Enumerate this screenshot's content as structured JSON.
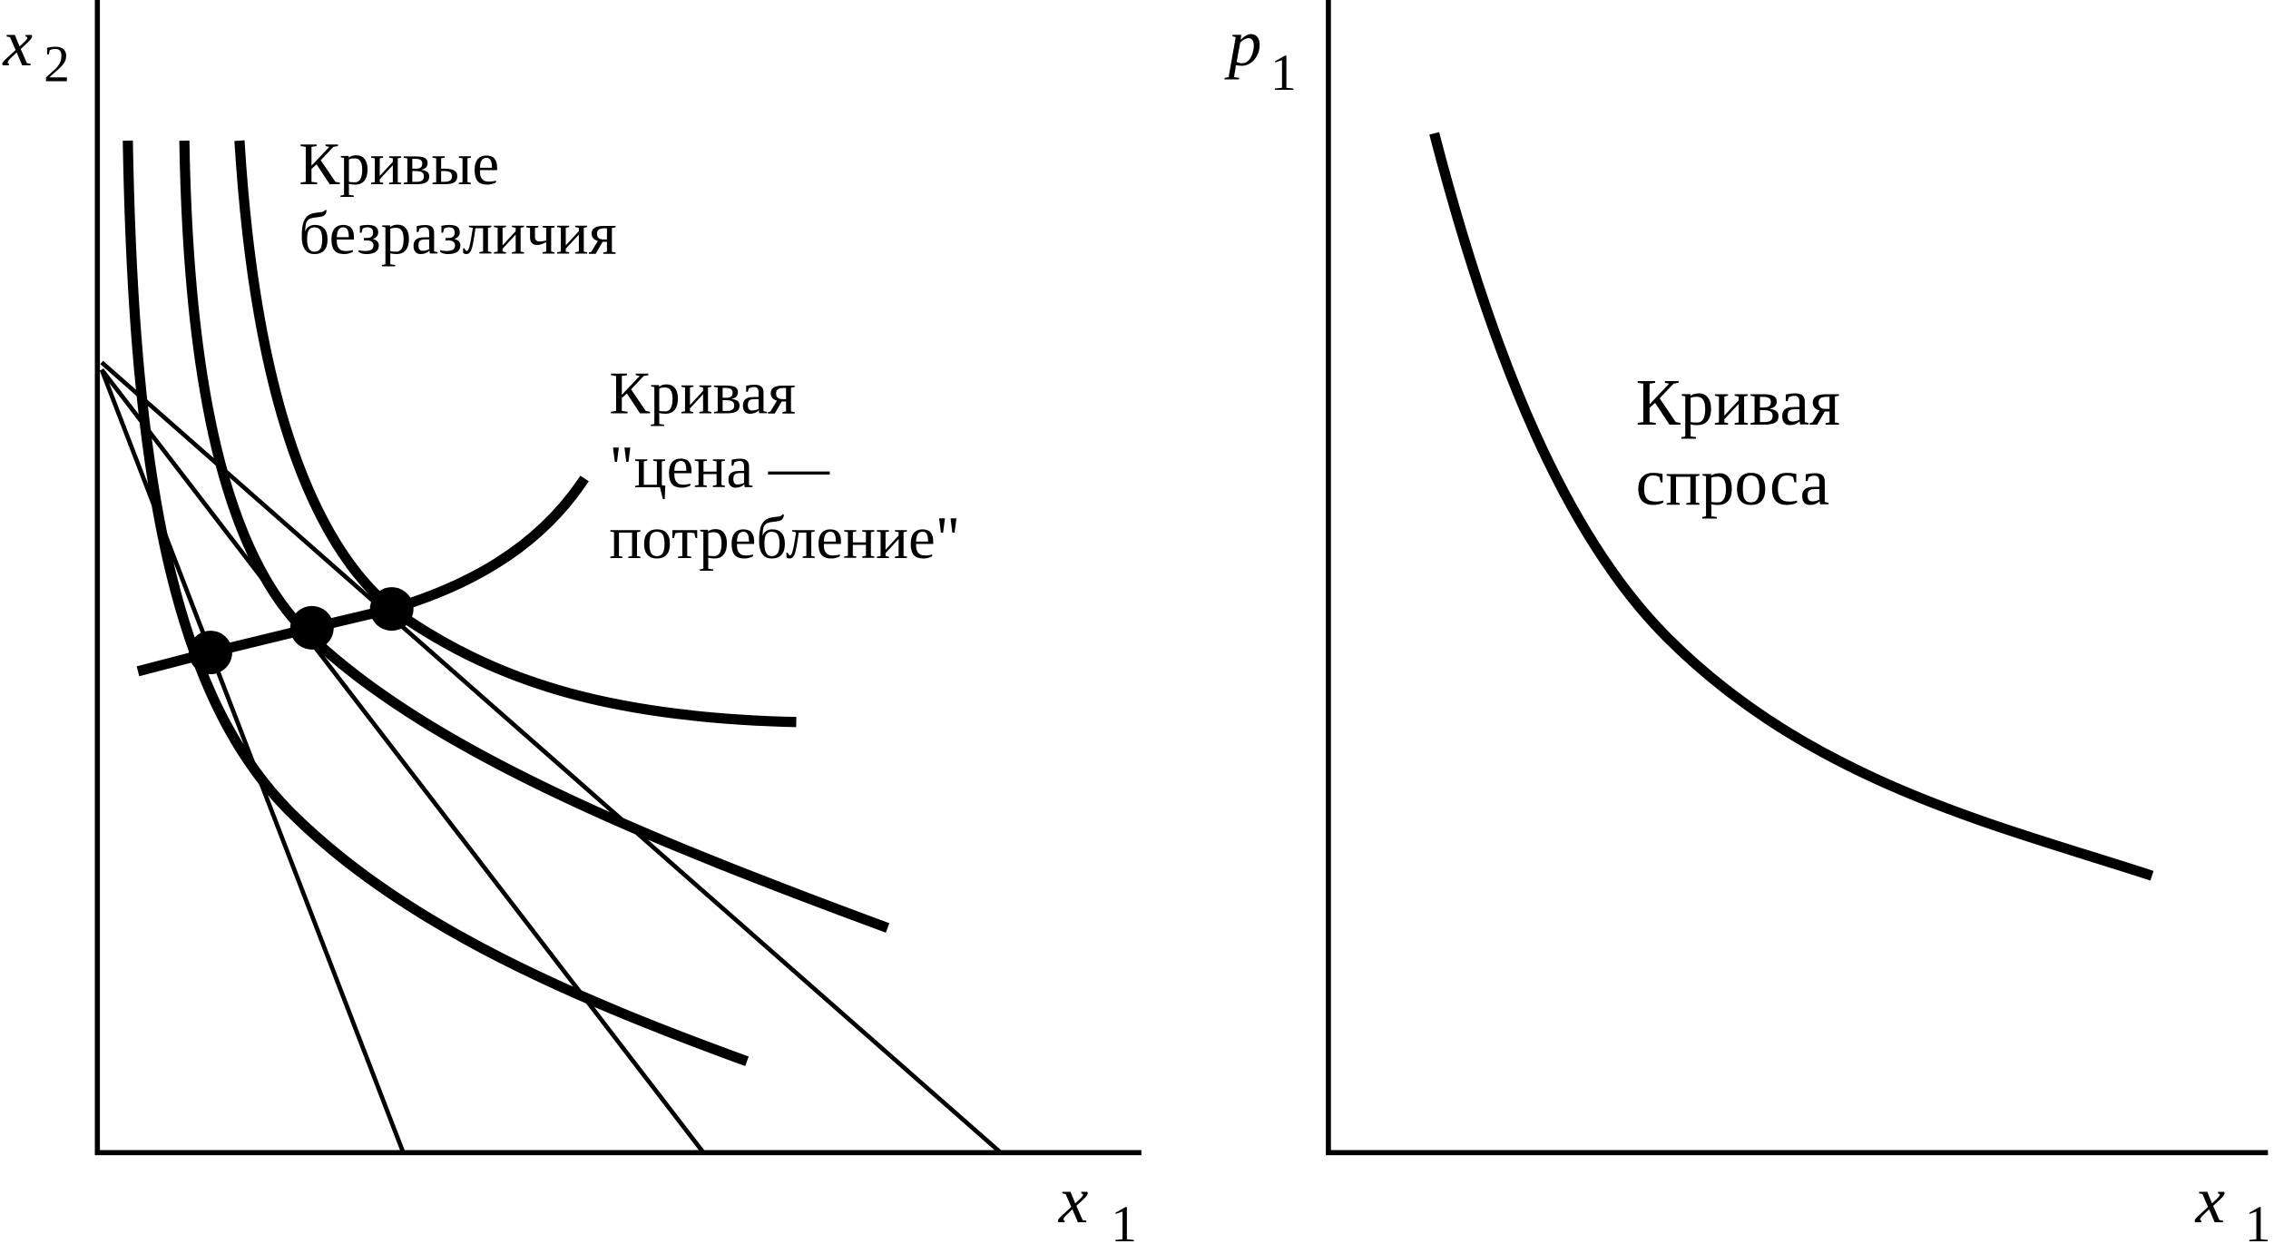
{
  "left_panel": {
    "y_axis": {
      "symbol": "x",
      "subscript": "2"
    },
    "x_axis": {
      "symbol": "x",
      "subscript": "1"
    },
    "indifference_label": [
      "Кривые",
      "безразличия"
    ],
    "pcc_label": [
      "Кривая",
      "\"цена —",
      "потребление\""
    ]
  },
  "right_panel": {
    "y_axis": {
      "symbol": "p",
      "subscript": "1"
    },
    "x_axis": {
      "symbol": "x",
      "subscript": "1"
    },
    "demand_label": [
      "Кривая",
      "спроса"
    ]
  }
}
